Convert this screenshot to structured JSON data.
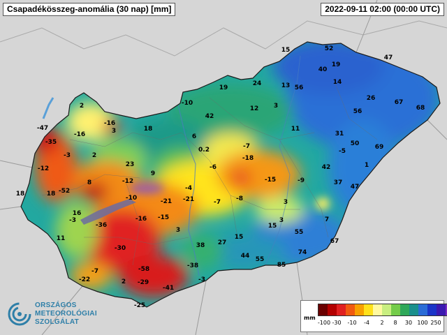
{
  "header": {
    "title": "Csapadékösszeg-anomália (30 nap) [mm]",
    "timestamp": "2022-09-11 02:00 (00:00 UTC)"
  },
  "logo": {
    "lines": [
      "ORSZÁGOS",
      "METEOROLÓGIAI",
      "SZOLGÁLAT"
    ],
    "color": "#2e7fa8"
  },
  "legend": {
    "unit": "mm",
    "colors": [
      "#6a0000",
      "#b30000",
      "#e02020",
      "#f05a10",
      "#f7a000",
      "#ffe11a",
      "#fff9a0",
      "#c8ee80",
      "#74cc4a",
      "#2fa85a",
      "#1a8f8c",
      "#2b6cd6",
      "#1b35c8",
      "#3b1ab0",
      "#7a2cc0"
    ],
    "ticks": [
      "-100",
      "-30",
      "-10",
      "-4",
      "2",
      "8",
      "30",
      "100",
      "250"
    ]
  },
  "values": [
    {
      "label": "15"
    },
    {
      "label": "52"
    },
    {
      "label": "47"
    },
    {
      "label": "40"
    },
    {
      "label": "19"
    },
    {
      "label": "24"
    },
    {
      "label": "13"
    },
    {
      "label": "56"
    },
    {
      "label": "14"
    },
    {
      "label": "19"
    },
    {
      "label": "26"
    },
    {
      "label": "67"
    },
    {
      "label": "68"
    },
    {
      "label": "-10"
    },
    {
      "label": "12"
    },
    {
      "label": "3"
    },
    {
      "label": "56"
    },
    {
      "label": "2"
    },
    {
      "label": "42"
    },
    {
      "label": "-47"
    },
    {
      "label": "-16"
    },
    {
      "label": "-16"
    },
    {
      "label": "3"
    },
    {
      "label": "18"
    },
    {
      "label": "11"
    },
    {
      "label": "31"
    },
    {
      "label": "-35"
    },
    {
      "label": "-3"
    },
    {
      "label": "2"
    },
    {
      "label": "6"
    },
    {
      "label": "0.2"
    },
    {
      "label": "-7"
    },
    {
      "label": "-5"
    },
    {
      "label": "50"
    },
    {
      "label": "69"
    },
    {
      "label": "-12"
    },
    {
      "label": "23"
    },
    {
      "label": "9"
    },
    {
      "label": "-6"
    },
    {
      "label": "-18"
    },
    {
      "label": "42"
    },
    {
      "label": "1"
    },
    {
      "label": "18"
    },
    {
      "label": "18"
    },
    {
      "label": "8"
    },
    {
      "label": "-12"
    },
    {
      "label": "-52"
    },
    {
      "label": "-4"
    },
    {
      "label": "-15"
    },
    {
      "label": "-9"
    },
    {
      "label": "37"
    },
    {
      "label": "47"
    },
    {
      "label": "-10"
    },
    {
      "label": "-21"
    },
    {
      "label": "-21"
    },
    {
      "label": "-7"
    },
    {
      "label": "-8"
    },
    {
      "label": "3"
    },
    {
      "label": "16"
    },
    {
      "label": "-3"
    },
    {
      "label": "-16"
    },
    {
      "label": "-15"
    },
    {
      "label": "7"
    },
    {
      "label": "-36"
    },
    {
      "label": "3"
    },
    {
      "label": "15"
    },
    {
      "label": "3"
    },
    {
      "label": "11"
    },
    {
      "label": "55"
    },
    {
      "label": "15"
    },
    {
      "label": "38"
    },
    {
      "label": "27"
    },
    {
      "label": "67"
    },
    {
      "label": "-30"
    },
    {
      "label": "74"
    },
    {
      "label": "44"
    },
    {
      "label": "55"
    },
    {
      "label": "-38"
    },
    {
      "label": "85"
    },
    {
      "label": "-7"
    },
    {
      "label": "-58"
    },
    {
      "label": "-22"
    },
    {
      "label": "2"
    },
    {
      "label": "-29"
    },
    {
      "label": "-3"
    },
    {
      "label": "-41"
    },
    {
      "label": "-25"
    }
  ]
}
